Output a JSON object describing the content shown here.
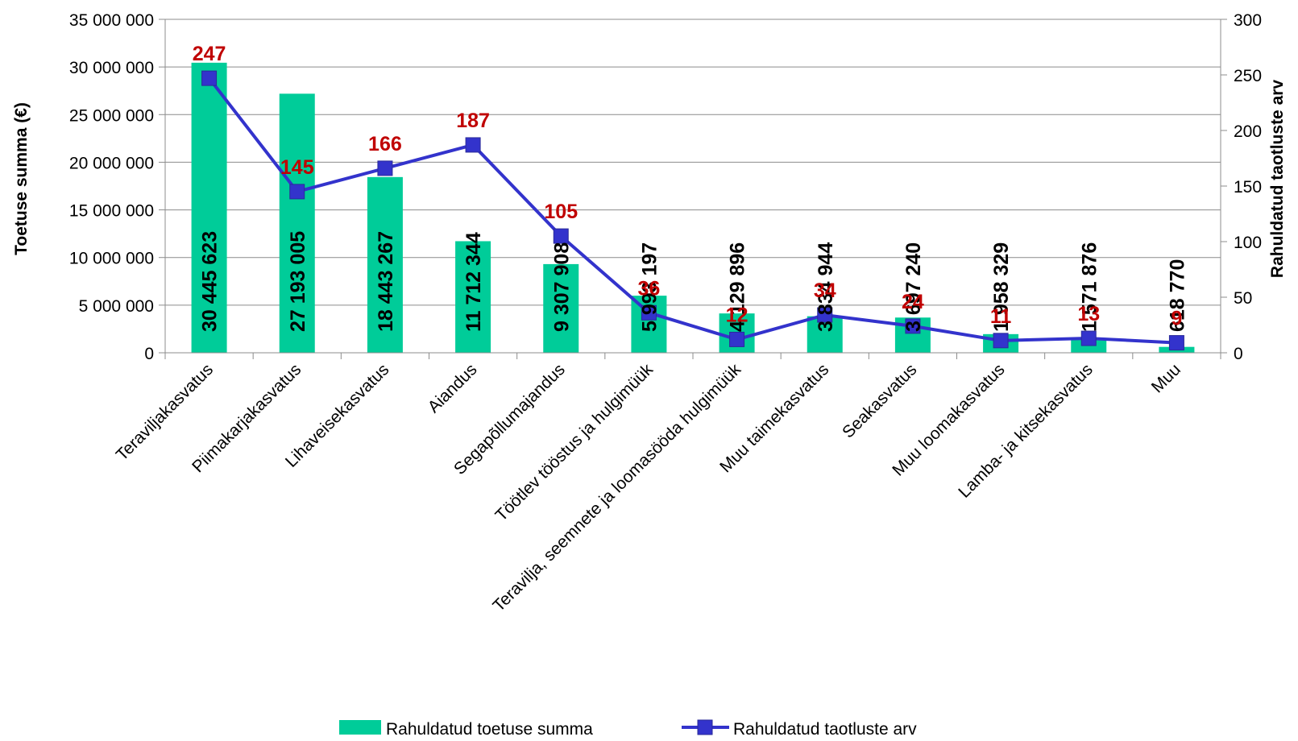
{
  "chart_data": {
    "type": "bar",
    "combo": "bar+line",
    "categories": [
      "Teraviljakasvatus",
      "Piimakarjakasvatus",
      "Lihaveisekasvatus",
      "Aiandus",
      "Segapõllumajandus",
      "Töötlev tööstus ja hulgimüük",
      "Teravilja,  seemnete ja loomasööda hulgimüük",
      "Muu taimekasvatus",
      "Seakasvatus",
      "Muu loomakasvatus",
      "Lamba- ja kitsekasvatus",
      "Muu"
    ],
    "series": [
      {
        "name": "Rahuldatud toetuse summa",
        "type": "bar",
        "axis": "left",
        "color": "#00cc99",
        "values": [
          30445623,
          27193005,
          18443267,
          11712344,
          9307908,
          5993197,
          4129896,
          3834944,
          3697240,
          1958329,
          1571876,
          618770
        ],
        "labels": [
          "30 445 623",
          "27 193 005",
          "18 443 267",
          "11 712 344",
          "9 307 908",
          "5 993 197",
          "4 129 896",
          "3 834 944",
          "3 697 240",
          "1 958 329",
          "1 571 876",
          "618 770"
        ]
      },
      {
        "name": "Rahuldatud taotluste arv",
        "type": "line",
        "axis": "right",
        "color": "#3333cc",
        "label_color": "#c00000",
        "marker": "square",
        "values": [
          247,
          145,
          166,
          187,
          105,
          36,
          12,
          34,
          24,
          11,
          13,
          9
        ],
        "labels": [
          "247",
          "145",
          "166",
          "187",
          "105",
          "36",
          "12",
          "34",
          "24",
          "11",
          "13",
          "9"
        ]
      }
    ],
    "ylabel": "Toetuse summa (€)",
    "ylabel_right": "Rahuldatud taotluste arv",
    "ylim": [
      0,
      35000000
    ],
    "ylim_right": [
      0,
      300
    ],
    "yticks": [
      "0",
      "5 000 000",
      "10 000 000",
      "15 000 000",
      "20 000 000",
      "25 000 000",
      "30 000 000",
      "35 000 000"
    ],
    "yticks_right": [
      "0",
      "50",
      "100",
      "150",
      "200",
      "250",
      "300"
    ],
    "grid": "horizontal",
    "legend": "bottom"
  }
}
